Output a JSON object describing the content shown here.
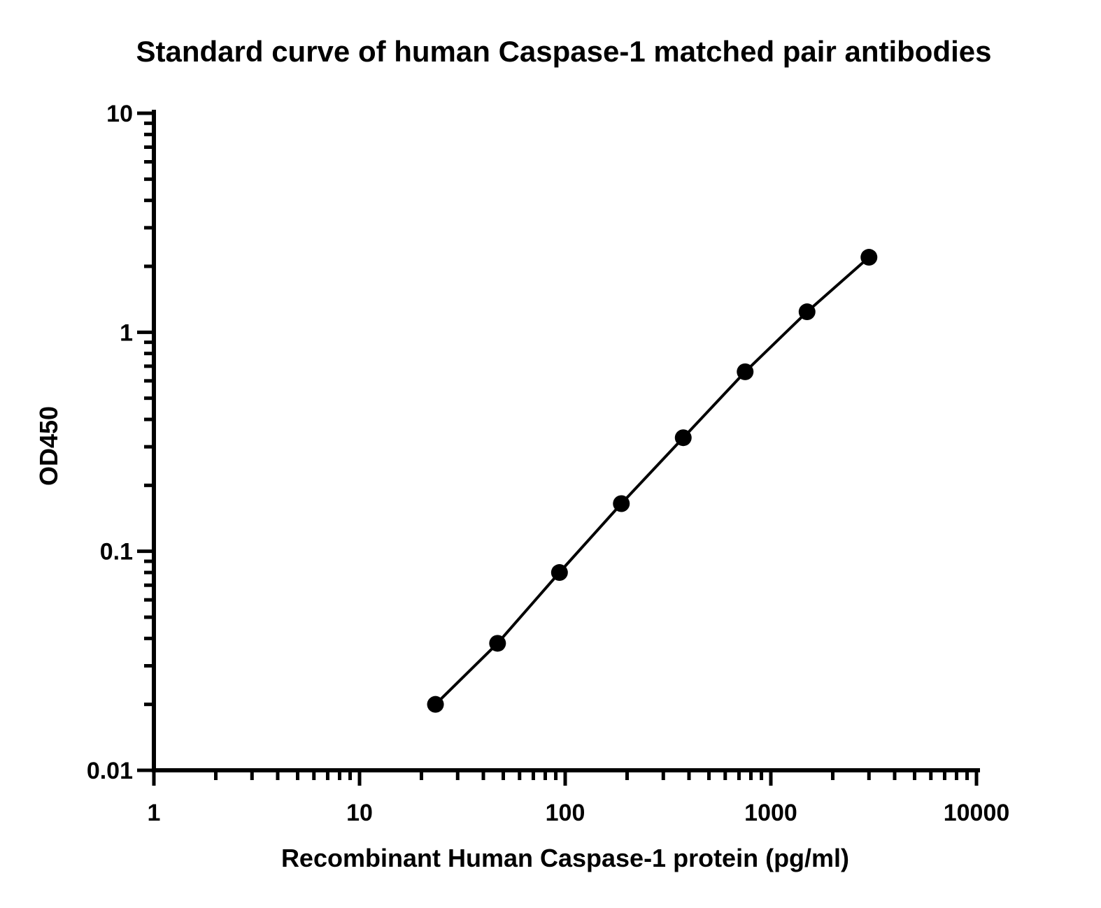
{
  "chart_data": {
    "type": "line",
    "title": "Standard curve of human Caspase-1 matched pair antibodies",
    "xlabel": "Recombinant Human Caspase-1 protein (pg/ml)",
    "ylabel": "OD450",
    "x_scale": "log",
    "y_scale": "log",
    "xlim": [
      1,
      10000
    ],
    "ylim": [
      0.01,
      10
    ],
    "x_tick_labels": [
      "1",
      "10",
      "100",
      "1000",
      "10000"
    ],
    "y_tick_labels": [
      "0.01",
      "0.1",
      "1",
      "10"
    ],
    "grid": false,
    "legend": "none",
    "series": [
      {
        "x": [
          23.4,
          46.9,
          93.8,
          187.5,
          375,
          750,
          1500,
          3000
        ],
        "y": [
          0.02,
          0.038,
          0.08,
          0.165,
          0.33,
          0.66,
          1.24,
          2.2
        ],
        "markers": "filled-circle",
        "color": "#000000"
      }
    ]
  }
}
